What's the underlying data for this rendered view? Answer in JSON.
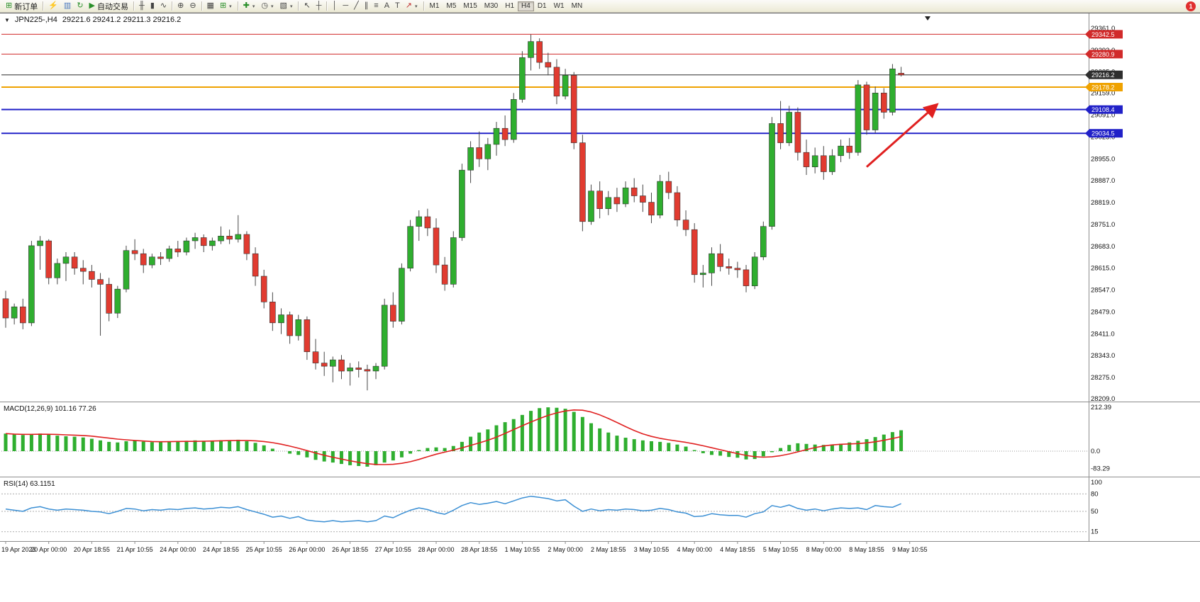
{
  "toolbar": {
    "new_order_label": "新订单",
    "autotrading_label": "自动交易",
    "text_tool": "A",
    "label_tool": "T",
    "timeframes": [
      "M1",
      "M5",
      "M15",
      "M30",
      "H1",
      "H4",
      "D1",
      "W1",
      "MN"
    ],
    "active_timeframe": "H4",
    "notification_count": "1",
    "icons": {
      "new_order": "⊞",
      "lightning": "⚡",
      "market_watch": "▥",
      "refresh": "↻",
      "autotrading": "▶",
      "bars": "╫",
      "candles": "▮",
      "line_chart": "∿",
      "zoom_in": "⊕",
      "zoom_out": "⊖",
      "tile": "▦",
      "new_chart": "⊞",
      "indicators": "✚",
      "periods": "◷",
      "templates": "▧",
      "caret": "▾",
      "cursor": "↖",
      "crosshair": "┼",
      "vline": "│",
      "hline": "─",
      "trendline": "╱",
      "channel": "∥",
      "fibonacci": "≡",
      "arrows": "↗"
    }
  },
  "chart": {
    "dropdown_icon": "▼",
    "title": "JPN225-,H4",
    "ohlc": "29221.6 29241.2 29211.3 29216.2"
  },
  "chart_data": {
    "type": "candlestick",
    "symbol": "JPN225-",
    "timeframe": "H4",
    "current_ohlc": {
      "open": 29221.6,
      "high": 29241.2,
      "low": 29211.3,
      "close": 29216.2
    },
    "price_axis": {
      "max": 29361.0,
      "min": 28209.0,
      "ticks": [
        29361.0,
        29293.0,
        29225.0,
        29159.0,
        29091.0,
        29023.0,
        28955.0,
        28887.0,
        28819.0,
        28751.0,
        28683.0,
        28615.0,
        28547.0,
        28479.0,
        28411.0,
        28343.0,
        28275.0,
        28209.0
      ]
    },
    "hlines": [
      {
        "price": 29342.5,
        "color": "#d12a2a",
        "width": 1,
        "role": "resistance"
      },
      {
        "price": 29280.9,
        "color": "#d12a2a",
        "width": 1,
        "role": "resistance"
      },
      {
        "price": 29216.2,
        "color": "#2e2e2e",
        "width": 1,
        "role": "current-price"
      },
      {
        "price": 29178.2,
        "color": "#efa200",
        "width": 2,
        "role": "level"
      },
      {
        "price": 29108.4,
        "color": "#2121c8",
        "width": 2,
        "role": "support"
      },
      {
        "price": 29034.5,
        "color": "#2121c8",
        "width": 2,
        "role": "support"
      }
    ],
    "time_labels": [
      "19 Apr 2023",
      "20 Apr 00:00",
      "20 Apr 18:55",
      "21 Apr 10:55",
      "24 Apr 00:00",
      "24 Apr 18:55",
      "25 Apr 10:55",
      "26 Apr 00:00",
      "26 Apr 18:55",
      "27 Apr 10:55",
      "28 Apr 00:00",
      "28 Apr 18:55",
      "1 May 10:55",
      "2 May 00:00",
      "2 May 18:55",
      "3 May 10:55",
      "4 May 00:00",
      "4 May 18:55",
      "5 May 10:55",
      "8 May 00:00",
      "8 May 18:55",
      "9 May 10:55"
    ],
    "candles_per_label": 5,
    "colors": {
      "up": "#2fae2f",
      "down": "#e13b30",
      "wick": "#474747",
      "outline": "#333333"
    },
    "candles": [
      [
        28520,
        28545,
        28430,
        28460
      ],
      [
        28460,
        28505,
        28440,
        28495
      ],
      [
        28495,
        28520,
        28425,
        28445
      ],
      [
        28445,
        28700,
        28435,
        28685
      ],
      [
        28685,
        28715,
        28610,
        28700
      ],
      [
        28700,
        28705,
        28565,
        28585
      ],
      [
        28585,
        28645,
        28565,
        28630
      ],
      [
        28630,
        28665,
        28575,
        28650
      ],
      [
        28650,
        28665,
        28595,
        28615
      ],
      [
        28615,
        28640,
        28565,
        28605
      ],
      [
        28605,
        28625,
        28555,
        28580
      ],
      [
        28580,
        28600,
        28405,
        28565
      ],
      [
        28565,
        28585,
        28450,
        28475
      ],
      [
        28475,
        28560,
        28460,
        28550
      ],
      [
        28550,
        28685,
        28540,
        28670
      ],
      [
        28670,
        28705,
        28640,
        28660
      ],
      [
        28660,
        28675,
        28600,
        28625
      ],
      [
        28625,
        28660,
        28615,
        28650
      ],
      [
        28650,
        28665,
        28625,
        28645
      ],
      [
        28645,
        28685,
        28635,
        28675
      ],
      [
        28675,
        28700,
        28650,
        28665
      ],
      [
        28665,
        28710,
        28655,
        28700
      ],
      [
        28700,
        28725,
        28675,
        28710
      ],
      [
        28710,
        28720,
        28665,
        28685
      ],
      [
        28685,
        28710,
        28670,
        28700
      ],
      [
        28700,
        28745,
        28690,
        28715
      ],
      [
        28715,
        28735,
        28690,
        28705
      ],
      [
        28705,
        28780,
        28695,
        28720
      ],
      [
        28720,
        28730,
        28640,
        28660
      ],
      [
        28660,
        28680,
        28560,
        28590
      ],
      [
        28590,
        28610,
        28490,
        28510
      ],
      [
        28510,
        28540,
        28420,
        28445
      ],
      [
        28445,
        28490,
        28410,
        28470
      ],
      [
        28470,
        28480,
        28380,
        28405
      ],
      [
        28405,
        28470,
        28390,
        28455
      ],
      [
        28455,
        28465,
        28330,
        28355
      ],
      [
        28355,
        28395,
        28300,
        28320
      ],
      [
        28320,
        28355,
        28280,
        28310
      ],
      [
        28310,
        28340,
        28260,
        28330
      ],
      [
        28330,
        28345,
        28270,
        28295
      ],
      [
        28295,
        28320,
        28250,
        28305
      ],
      [
        28305,
        28325,
        28275,
        28300
      ],
      [
        28300,
        28315,
        28235,
        28295
      ],
      [
        28295,
        28320,
        28270,
        28310
      ],
      [
        28310,
        28520,
        28300,
        28500
      ],
      [
        28500,
        28540,
        28430,
        28450
      ],
      [
        28450,
        28630,
        28440,
        28615
      ],
      [
        28615,
        28765,
        28605,
        28745
      ],
      [
        28745,
        28795,
        28700,
        28775
      ],
      [
        28775,
        28800,
        28715,
        28740
      ],
      [
        28740,
        28770,
        28600,
        28625
      ],
      [
        28625,
        28650,
        28545,
        28565
      ],
      [
        28565,
        28730,
        28555,
        28710
      ],
      [
        28710,
        28940,
        28700,
        28920
      ],
      [
        28920,
        29010,
        28880,
        28990
      ],
      [
        28990,
        29040,
        28930,
        28955
      ],
      [
        28955,
        29020,
        28920,
        29000
      ],
      [
        29000,
        29070,
        28965,
        29050
      ],
      [
        29050,
        29090,
        28995,
        29015
      ],
      [
        29015,
        29160,
        29005,
        29140
      ],
      [
        29140,
        29290,
        29130,
        29270
      ],
      [
        29270,
        29342,
        29230,
        29320
      ],
      [
        29320,
        29330,
        29235,
        29255
      ],
      [
        29255,
        29285,
        29215,
        29240
      ],
      [
        29240,
        29265,
        29125,
        29150
      ],
      [
        29150,
        29235,
        29140,
        29215
      ],
      [
        29215,
        29225,
        28985,
        29005
      ],
      [
        29005,
        29030,
        28730,
        28760
      ],
      [
        28760,
        28875,
        28750,
        28855
      ],
      [
        28855,
        28885,
        28770,
        28800
      ],
      [
        28800,
        28855,
        28780,
        28835
      ],
      [
        28835,
        28865,
        28790,
        28815
      ],
      [
        28815,
        28885,
        28805,
        28865
      ],
      [
        28865,
        28895,
        28820,
        28840
      ],
      [
        28840,
        28875,
        28790,
        28820
      ],
      [
        28820,
        28850,
        28755,
        28780
      ],
      [
        28780,
        28905,
        28770,
        28885
      ],
      [
        28885,
        28915,
        28830,
        28850
      ],
      [
        28850,
        28870,
        28745,
        28765
      ],
      [
        28765,
        28795,
        28715,
        28735
      ],
      [
        28735,
        28755,
        28570,
        28595
      ],
      [
        28595,
        28625,
        28555,
        28600
      ],
      [
        28600,
        28680,
        28560,
        28660
      ],
      [
        28660,
        28690,
        28605,
        28620
      ],
      [
        28620,
        28645,
        28595,
        28615
      ],
      [
        28615,
        28635,
        28585,
        28610
      ],
      [
        28610,
        28625,
        28540,
        28560
      ],
      [
        28560,
        28665,
        28550,
        28650
      ],
      [
        28650,
        28760,
        28640,
        28745
      ],
      [
        28745,
        29085,
        28735,
        29065
      ],
      [
        29065,
        29135,
        28985,
        29005
      ],
      [
        29005,
        29120,
        28995,
        29100
      ],
      [
        29100,
        29115,
        28950,
        28975
      ],
      [
        28975,
        29015,
        28905,
        28930
      ],
      [
        28930,
        28990,
        28910,
        28965
      ],
      [
        28965,
        28995,
        28890,
        28915
      ],
      [
        28915,
        28985,
        28905,
        28965
      ],
      [
        28965,
        29015,
        28945,
        28995
      ],
      [
        28995,
        29020,
        28955,
        28975
      ],
      [
        28975,
        29200,
        28965,
        29185
      ],
      [
        29185,
        29195,
        29030,
        29045
      ],
      [
        29045,
        29180,
        29035,
        29160
      ],
      [
        29160,
        29175,
        29080,
        29100
      ],
      [
        29100,
        29250,
        29090,
        29235
      ],
      [
        29221.6,
        29241.2,
        29211.3,
        29216.2
      ]
    ],
    "macd": {
      "label": "MACD(12,26,9)",
      "values_label": "101.16 77.26",
      "color": "#2fae2f",
      "signal_color": "#e02020",
      "signal_period": 7,
      "scale": [
        {
          "v": 212.39,
          "label": "212.39"
        },
        {
          "v": 0,
          "label": "0.0"
        },
        {
          "v": -83.29,
          "label": "-83.29"
        }
      ],
      "histogram": [
        85,
        80,
        78,
        82,
        85,
        80,
        75,
        72,
        70,
        66,
        60,
        52,
        45,
        42,
        48,
        50,
        46,
        44,
        45,
        47,
        48,
        50,
        52,
        50,
        51,
        53,
        52,
        55,
        48,
        40,
        28,
        12,
        0,
        -12,
        -18,
        -30,
        -42,
        -50,
        -55,
        -62,
        -68,
        -72,
        -75,
        -68,
        -55,
        -45,
        -30,
        -12,
        5,
        15,
        18,
        15,
        25,
        45,
        70,
        90,
        105,
        125,
        140,
        155,
        175,
        195,
        208,
        212,
        210,
        205,
        190,
        165,
        135,
        110,
        90,
        75,
        65,
        58,
        52,
        48,
        45,
        40,
        32,
        22,
        5,
        -10,
        -18,
        -22,
        -28,
        -32,
        -40,
        -38,
        -25,
        -5,
        15,
        30,
        38,
        35,
        32,
        30,
        32,
        36,
        42,
        50,
        58,
        68,
        80,
        92,
        101
      ]
    },
    "rsi": {
      "label": "RSI(14)",
      "value_label": "63.1151",
      "color": "#3b8fd4",
      "levels": [
        80,
        50,
        15
      ],
      "scale": [
        {
          "v": 100,
          "label": "100"
        },
        {
          "v": 80,
          "label": "80"
        },
        {
          "v": 50,
          "label": "50"
        },
        {
          "v": 15,
          "label": "15"
        }
      ],
      "values": [
        54,
        52,
        50,
        56,
        58,
        54,
        52,
        54,
        53,
        52,
        50,
        49,
        46,
        50,
        55,
        54,
        51,
        53,
        52,
        54,
        53,
        55,
        56,
        54,
        55,
        57,
        56,
        58,
        53,
        49,
        45,
        40,
        42,
        38,
        41,
        35,
        33,
        32,
        34,
        32,
        33,
        34,
        32,
        34,
        42,
        39,
        46,
        52,
        56,
        53,
        48,
        45,
        52,
        60,
        65,
        62,
        64,
        67,
        63,
        68,
        73,
        76,
        74,
        72,
        68,
        70,
        59,
        50,
        54,
        51,
        53,
        52,
        54,
        53,
        51,
        52,
        55,
        53,
        49,
        47,
        41,
        42,
        46,
        44,
        43,
        43,
        40,
        46,
        49,
        60,
        57,
        61,
        55,
        52,
        54,
        51,
        54,
        56,
        55,
        56,
        53,
        60,
        58,
        57,
        63.1151
      ]
    },
    "arrow": {
      "color": "#e02020",
      "from": {
        "candle": 100,
        "price": 28930
      },
      "to": {
        "candle": 108,
        "price": 29120
      }
    }
  }
}
